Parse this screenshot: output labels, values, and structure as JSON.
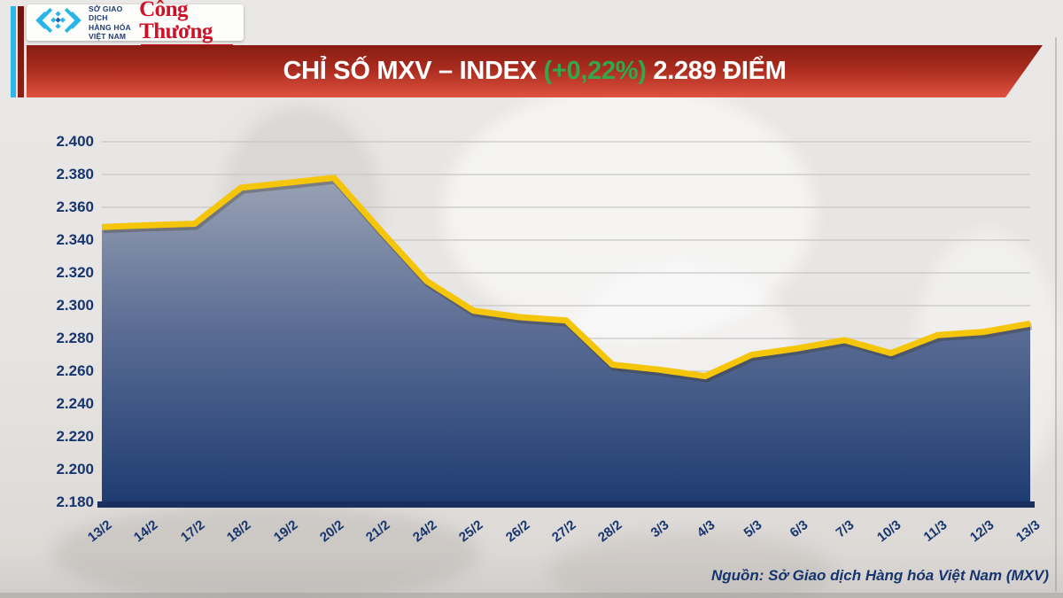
{
  "header": {
    "logo": {
      "icon": "mxv-diamond-logo",
      "org_lines": [
        "SỞ GIAO DỊCH",
        "HÀNG HÓA",
        "VIỆT NAM"
      ],
      "brand": "Công Thương"
    },
    "banner": {
      "title_prefix": "CHỈ SỐ MXV – INDEX",
      "change": "(+0,22%)",
      "title_suffix": "2.289 ĐIỂM",
      "change_color": "#33a64e",
      "background_colors": [
        "#871c12",
        "#e0523f"
      ]
    }
  },
  "chart_data": {
    "type": "area",
    "title": "Chỉ số MXV - Index",
    "categories": [
      "13/2",
      "14/2",
      "17/2",
      "18/2",
      "19/2",
      "20/2",
      "21/2",
      "24/2",
      "25/2",
      "26/2",
      "27/2",
      "28/2",
      "3/3",
      "4/3",
      "5/3",
      "6/3",
      "7/3",
      "10/3",
      "11/3",
      "12/3",
      "13/3"
    ],
    "values": [
      2348,
      2349,
      2350,
      2372,
      2375,
      2378,
      2346,
      2315,
      2297,
      2293,
      2291,
      2264,
      2261,
      2257,
      2270,
      2274,
      2279,
      2271,
      2282,
      2284,
      2289
    ],
    "ylim": [
      2180,
      2400
    ],
    "ytick_step": 20,
    "ytick_labels": [
      "2.400",
      "2.380",
      "2.360",
      "2.340",
      "2.320",
      "2.300",
      "2.280",
      "2.260",
      "2.240",
      "2.220",
      "2.200",
      "2.180"
    ],
    "xlabel": "",
    "ylabel": "",
    "grid": true,
    "legend": false,
    "line_color": "#f5c50a",
    "area_gradient": [
      "#9ba4b6",
      "#5a6c94",
      "#1f3c72"
    ],
    "grid_color": "#c7c6c4",
    "axis_text_color": "#17356f"
  },
  "footer": {
    "source": "Nguồn: Sở Giao dịch Hàng hóa Việt Nam (MXV)"
  }
}
